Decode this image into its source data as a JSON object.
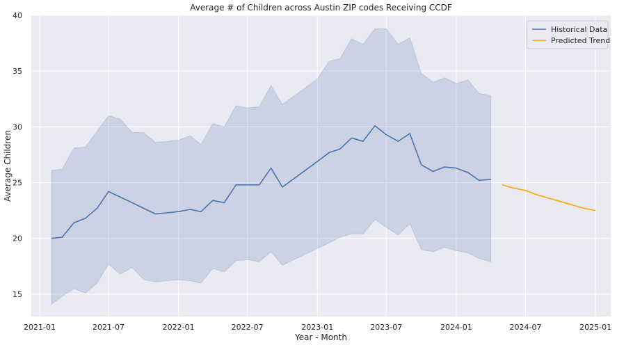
{
  "chart_data": {
    "type": "line",
    "title": "Average # of Children across Austin ZIP codes Receiving CCDF",
    "xlabel": "Year - Month",
    "ylabel": "Average Children",
    "xlim": [
      "2020-12-10",
      "2025-02-10"
    ],
    "ylim": [
      13,
      40
    ],
    "x_ticks": [
      "2021-01",
      "2021-07",
      "2022-01",
      "2022-07",
      "2023-01",
      "2023-07",
      "2024-01",
      "2024-07",
      "2025-01"
    ],
    "y_ticks": [
      15,
      20,
      25,
      30,
      35,
      40
    ],
    "grid": true,
    "legend_position": "top-right",
    "series": [
      {
        "name": "Historical Data",
        "color": "#4c72b0",
        "band_color": "#4c72b0",
        "points": [
          {
            "x": "2021-02",
            "y": 20.0,
            "lo": 14.1,
            "hi": 26.1
          },
          {
            "x": "2021-03",
            "y": 20.1,
            "lo": 14.8,
            "hi": 26.2
          },
          {
            "x": "2021-04",
            "y": 21.4,
            "lo": 15.5,
            "hi": 28.1
          },
          {
            "x": "2021-05",
            "y": 21.8,
            "lo": 15.1,
            "hi": 28.2
          },
          {
            "x": "2021-06",
            "y": 22.7,
            "lo": 16.0,
            "hi": 29.6
          },
          {
            "x": "2021-07",
            "y": 24.2,
            "lo": 17.7,
            "hi": 31.0
          },
          {
            "x": "2021-08",
            "y": 23.7,
            "lo": 16.8,
            "hi": 30.7
          },
          {
            "x": "2021-09",
            "y": 23.2,
            "lo": 17.4,
            "hi": 29.5
          },
          {
            "x": "2021-10",
            "y": 22.7,
            "lo": 16.3,
            "hi": 29.5
          },
          {
            "x": "2021-11",
            "y": 22.2,
            "lo": 16.1,
            "hi": 28.6
          },
          {
            "x": "2021-12",
            "y": 22.3,
            "lo": 16.2,
            "hi": 28.7
          },
          {
            "x": "2022-01",
            "y": 22.4,
            "lo": 16.3,
            "hi": 28.8
          },
          {
            "x": "2022-02",
            "y": 22.6,
            "lo": 16.2,
            "hi": 29.2
          },
          {
            "x": "2022-03",
            "y": 22.4,
            "lo": 16.0,
            "hi": 28.4
          },
          {
            "x": "2022-04",
            "y": 23.4,
            "lo": 17.3,
            "hi": 30.3
          },
          {
            "x": "2022-05",
            "y": 23.2,
            "lo": 17.0,
            "hi": 30.0
          },
          {
            "x": "2022-06",
            "y": 24.8,
            "lo": 18.0,
            "hi": 31.9
          },
          {
            "x": "2022-07",
            "y": 24.8,
            "lo": 18.1,
            "hi": 31.7
          },
          {
            "x": "2022-08",
            "y": 24.8,
            "lo": 17.9,
            "hi": 31.8
          },
          {
            "x": "2022-09",
            "y": 26.3,
            "lo": 18.8,
            "hi": 33.7
          },
          {
            "x": "2022-10",
            "y": 24.6,
            "lo": 17.6,
            "hi": 32.0
          },
          {
            "x": "2023-01",
            "y": 26.9,
            "lo": 19.1,
            "hi": 34.3
          },
          {
            "x": "2023-02",
            "y": 27.7,
            "lo": 19.6,
            "hi": 35.9
          },
          {
            "x": "2023-03",
            "y": 28.0,
            "lo": 20.1,
            "hi": 36.1
          },
          {
            "x": "2023-04",
            "y": 29.0,
            "lo": 20.4,
            "hi": 37.9
          },
          {
            "x": "2023-05",
            "y": 28.7,
            "lo": 20.4,
            "hi": 37.4
          },
          {
            "x": "2023-06",
            "y": 30.1,
            "lo": 21.7,
            "hi": 38.8
          },
          {
            "x": "2023-07",
            "y": 29.3,
            "lo": 21.0,
            "hi": 38.8
          },
          {
            "x": "2023-08",
            "y": 28.7,
            "lo": 20.3,
            "hi": 37.4
          },
          {
            "x": "2023-09",
            "y": 29.4,
            "lo": 21.3,
            "hi": 38.0
          },
          {
            "x": "2023-10",
            "y": 26.6,
            "lo": 19.0,
            "hi": 34.8
          },
          {
            "x": "2023-11",
            "y": 26.0,
            "lo": 18.8,
            "hi": 34.0
          },
          {
            "x": "2023-12",
            "y": 26.4,
            "lo": 19.2,
            "hi": 34.4
          },
          {
            "x": "2024-01",
            "y": 26.3,
            "lo": 18.9,
            "hi": 33.9
          },
          {
            "x": "2024-02",
            "y": 25.9,
            "lo": 18.7,
            "hi": 34.2
          },
          {
            "x": "2024-03",
            "y": 25.2,
            "lo": 18.2,
            "hi": 33.0
          },
          {
            "x": "2024-04",
            "y": 25.3,
            "lo": 17.9,
            "hi": 32.8
          }
        ]
      },
      {
        "name": "Predicted Trend",
        "color": "#ffa500",
        "points": [
          {
            "x": "2024-05",
            "y": 24.8
          },
          {
            "x": "2024-06",
            "y": 24.5
          },
          {
            "x": "2024-07",
            "y": 24.3
          },
          {
            "x": "2024-08",
            "y": 23.9
          },
          {
            "x": "2024-09",
            "y": 23.6
          },
          {
            "x": "2024-10",
            "y": 23.3
          },
          {
            "x": "2024-11",
            "y": 23.0
          },
          {
            "x": "2024-12",
            "y": 22.7
          },
          {
            "x": "2025-01",
            "y": 22.5
          }
        ]
      }
    ]
  }
}
